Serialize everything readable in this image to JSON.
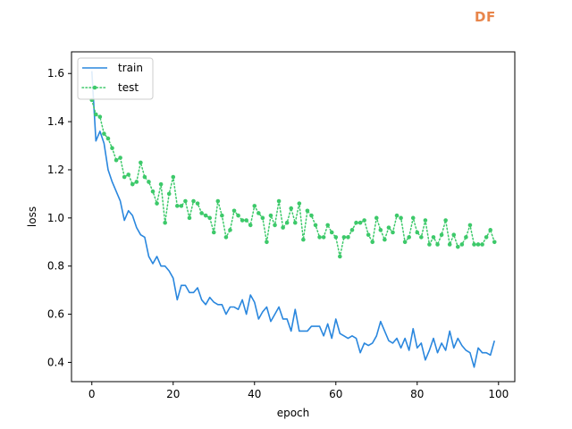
{
  "logo": {
    "text": "DF",
    "color": "#e8854a"
  },
  "chart_data": {
    "type": "line",
    "xlabel": "epoch",
    "ylabel": "loss",
    "xlim": [
      -5,
      104
    ],
    "ylim": [
      0.32,
      1.69
    ],
    "xticks": [
      0,
      20,
      40,
      60,
      80,
      100
    ],
    "yticks": [
      0.4,
      0.6,
      0.8,
      1.0,
      1.2,
      1.4,
      1.6
    ],
    "ytick_labels": [
      "0.4",
      "0.6",
      "0.8",
      "1.0",
      "1.2",
      "1.4",
      "1.6"
    ],
    "grid": false,
    "legend_position": "top-left",
    "x": [
      0,
      1,
      2,
      3,
      4,
      5,
      6,
      7,
      8,
      9,
      10,
      11,
      12,
      13,
      14,
      15,
      16,
      17,
      18,
      19,
      20,
      21,
      22,
      23,
      24,
      25,
      26,
      27,
      28,
      29,
      30,
      31,
      32,
      33,
      34,
      35,
      36,
      37,
      38,
      39,
      40,
      41,
      42,
      43,
      44,
      45,
      46,
      47,
      48,
      49,
      50,
      51,
      52,
      53,
      54,
      55,
      56,
      57,
      58,
      59,
      60,
      61,
      62,
      63,
      64,
      65,
      66,
      67,
      68,
      69,
      70,
      71,
      72,
      73,
      74,
      75,
      76,
      77,
      78,
      79,
      80,
      81,
      82,
      83,
      84,
      85,
      86,
      87,
      88,
      89,
      90,
      91,
      92,
      93,
      94,
      95,
      96,
      97,
      98,
      99
    ],
    "series": [
      {
        "name": "train",
        "color": "#2a87de",
        "style": "solid",
        "values": [
          1.61,
          1.32,
          1.36,
          1.31,
          1.2,
          1.15,
          1.11,
          1.07,
          0.99,
          1.03,
          1.01,
          0.96,
          0.93,
          0.92,
          0.84,
          0.81,
          0.84,
          0.8,
          0.8,
          0.78,
          0.75,
          0.66,
          0.72,
          0.72,
          0.69,
          0.69,
          0.71,
          0.66,
          0.64,
          0.67,
          0.65,
          0.64,
          0.64,
          0.6,
          0.63,
          0.63,
          0.62,
          0.66,
          0.6,
          0.68,
          0.65,
          0.58,
          0.61,
          0.63,
          0.57,
          0.6,
          0.63,
          0.58,
          0.58,
          0.53,
          0.62,
          0.53,
          0.53,
          0.53,
          0.55,
          0.55,
          0.55,
          0.51,
          0.56,
          0.5,
          0.58,
          0.52,
          0.51,
          0.5,
          0.51,
          0.5,
          0.44,
          0.48,
          0.47,
          0.48,
          0.51,
          0.57,
          0.53,
          0.49,
          0.48,
          0.5,
          0.46,
          0.5,
          0.45,
          0.54,
          0.46,
          0.48,
          0.41,
          0.45,
          0.5,
          0.44,
          0.48,
          0.45,
          0.53,
          0.46,
          0.5,
          0.47,
          0.45,
          0.44,
          0.38,
          0.46,
          0.44,
          0.44,
          0.43,
          0.49
        ]
      },
      {
        "name": "test",
        "color": "#3dc96a",
        "style": "dotted",
        "values": [
          1.49,
          1.43,
          1.42,
          1.35,
          1.33,
          1.29,
          1.24,
          1.25,
          1.17,
          1.18,
          1.14,
          1.15,
          1.23,
          1.17,
          1.15,
          1.11,
          1.06,
          1.14,
          0.98,
          1.1,
          1.17,
          1.05,
          1.05,
          1.07,
          1.0,
          1.07,
          1.06,
          1.02,
          1.01,
          1.0,
          0.94,
          1.07,
          1.01,
          0.92,
          0.95,
          1.03,
          1.01,
          0.99,
          0.99,
          0.97,
          1.05,
          1.02,
          1.0,
          0.9,
          1.01,
          0.97,
          1.07,
          0.96,
          0.98,
          1.04,
          0.98,
          1.06,
          0.91,
          1.03,
          1.01,
          0.97,
          0.92,
          0.92,
          0.97,
          0.94,
          0.92,
          0.84,
          0.92,
          0.92,
          0.95,
          0.98,
          0.98,
          0.99,
          0.93,
          0.9,
          1.0,
          0.95,
          0.91,
          0.96,
          0.94,
          1.01,
          1.0,
          0.9,
          0.92,
          1.0,
          0.94,
          0.92,
          0.99,
          0.89,
          0.92,
          0.89,
          0.93,
          0.99,
          0.89,
          0.93,
          0.88,
          0.89,
          0.92,
          0.97,
          0.89,
          0.89,
          0.89,
          0.92,
          0.95,
          0.9
        ]
      }
    ]
  }
}
